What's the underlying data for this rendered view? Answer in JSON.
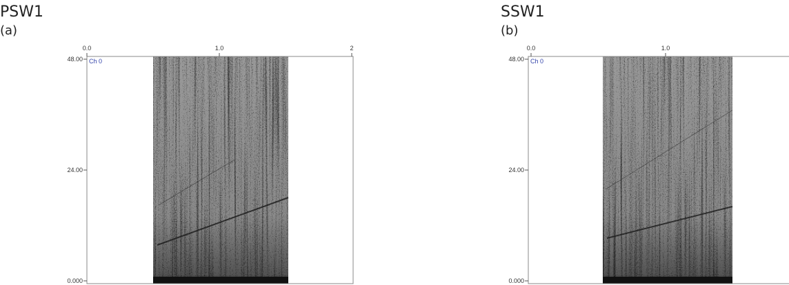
{
  "panels": [
    {
      "title": "PSW1",
      "label": "(a)",
      "channel": "Ch 0",
      "x_ticks": [
        "0.0",
        "1.0",
        "2"
      ],
      "y_ticks": [
        "48.00",
        "24.00",
        "0.000"
      ]
    },
    {
      "title": "SSW1",
      "label": "(b)",
      "channel": "Ch 0",
      "x_ticks": [
        "0.0",
        "1.0"
      ],
      "y_ticks": [
        "48.00",
        "24.00",
        "0.000"
      ]
    }
  ]
}
